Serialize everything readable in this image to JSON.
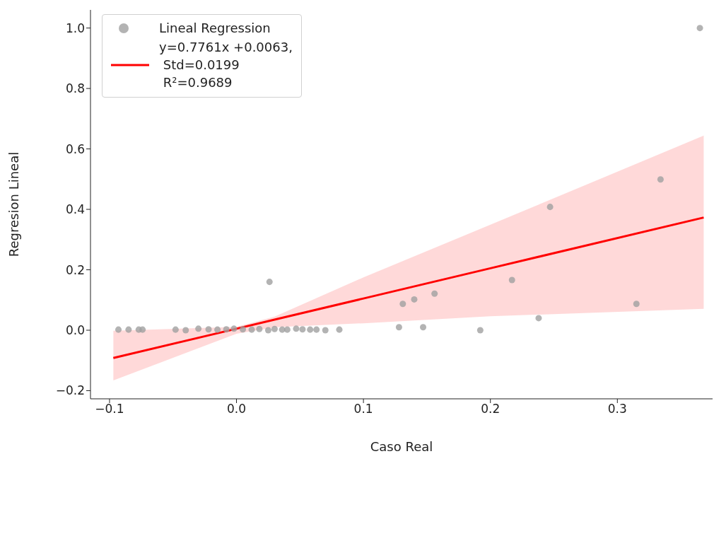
{
  "chart_data": {
    "type": "scatter",
    "xlabel": "Caso Real",
    "ylabel": "Regresion Lineal",
    "xlim": [
      -0.115,
      0.375
    ],
    "ylim": [
      -0.227,
      1.06
    ],
    "xticks": [
      {
        "value": -0.1,
        "label": "−0.1"
      },
      {
        "value": 0.0,
        "label": "0.0"
      },
      {
        "value": 0.1,
        "label": "0.1"
      },
      {
        "value": 0.2,
        "label": "0.2"
      },
      {
        "value": 0.3,
        "label": "0.3"
      }
    ],
    "yticks": [
      {
        "value": -0.2,
        "label": "−0.2"
      },
      {
        "value": 0.0,
        "label": "0.0"
      },
      {
        "value": 0.2,
        "label": "0.2"
      },
      {
        "value": 0.4,
        "label": "0.4"
      },
      {
        "value": 0.6,
        "label": "0.6"
      },
      {
        "value": 0.8,
        "label": "0.8"
      },
      {
        "value": 1.0,
        "label": "1.0"
      }
    ],
    "legend": "top left",
    "series": [
      {
        "name": "Lineal Regression",
        "color": "#a0a0a0",
        "marker": "circle",
        "x": [
          -0.093,
          -0.085,
          -0.077,
          -0.074,
          -0.048,
          -0.04,
          -0.03,
          -0.022,
          -0.015,
          -0.008,
          -0.002,
          0.005,
          0.012,
          0.018,
          0.025,
          0.03,
          0.036,
          0.04,
          0.047,
          0.052,
          0.058,
          0.063,
          0.07,
          0.081,
          0.026,
          0.128,
          0.131,
          0.14,
          0.147,
          0.156,
          0.192,
          0.217,
          0.238,
          0.247,
          0.315,
          0.334,
          0.365
        ],
        "values": [
          0.002,
          0.002,
          0.002,
          0.002,
          0.002,
          0.0,
          0.005,
          0.003,
          0.002,
          0.003,
          0.005,
          0.003,
          0.002,
          0.004,
          0.0,
          0.004,
          0.002,
          0.002,
          0.005,
          0.003,
          0.002,
          0.002,
          0.0,
          0.002,
          0.16,
          0.01,
          0.087,
          0.102,
          0.01,
          0.121,
          0.0,
          0.166,
          0.04,
          0.408,
          0.087,
          0.499,
          1.0
        ]
      },
      {
        "type": "line",
        "name": "y=0.7761x +0.0063,\n Std=0.0199\n R²=0.9689",
        "color": "#ff0000",
        "marker": "none",
        "x": [
          -0.097,
          0.0,
          0.03,
          0.1,
          0.2,
          0.368
        ],
        "values": [
          -0.092,
          0.005,
          0.035,
          0.105,
          0.205,
          0.373
        ],
        "lower": [
          -0.166,
          -0.012,
          0.01,
          0.023,
          0.046,
          0.071
        ],
        "upper": [
          -0.002,
          0.011,
          0.045,
          0.175,
          0.349,
          0.644
        ]
      }
    ]
  }
}
